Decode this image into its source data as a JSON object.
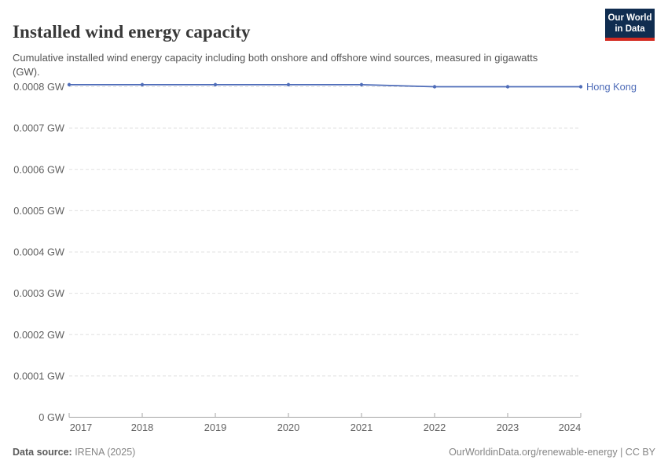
{
  "header": {
    "title": "Installed wind energy capacity",
    "subtitle": "Cumulative installed wind energy capacity including both onshore and offshore wind sources, measured in gigawatts (GW).",
    "logo": {
      "line1": "Our World",
      "line2": "in Data",
      "bg_color": "#102d50",
      "accent_color": "#d42b21"
    }
  },
  "chart_data": {
    "type": "line",
    "title": "Installed wind energy capacity",
    "x": [
      2017,
      2018,
      2019,
      2020,
      2021,
      2022,
      2023,
      2024
    ],
    "series": [
      {
        "name": "Hong Kong",
        "color": "#4e6cb8",
        "values": [
          0.000805,
          0.000805,
          0.000805,
          0.000805,
          0.000805,
          0.0008,
          0.0008,
          0.0008
        ]
      }
    ],
    "unit": "GW",
    "ylim": [
      0,
      0.00085
    ],
    "yticks": [
      0,
      0.0001,
      0.0002,
      0.0003,
      0.0004,
      0.0005,
      0.0006,
      0.0007,
      0.0008
    ],
    "ytick_labels": [
      "0 GW",
      "0.0001 GW",
      "0.0002 GW",
      "0.0003 GW",
      "0.0004 GW",
      "0.0005 GW",
      "0.0006 GW",
      "0.0007 GW",
      "0.0008 GW"
    ],
    "xlabel": "",
    "ylabel": "",
    "grid": "horizontal-dashed",
    "grid_color": "#e0e0e0",
    "axis_color": "#a5a5a5",
    "tick_label_color": "#606060",
    "legend": "inline-end-label"
  },
  "footer": {
    "source_label": "Data source:",
    "source_value": " IRENA (2025)",
    "credit": "OurWorldinData.org/renewable-energy | CC BY"
  }
}
